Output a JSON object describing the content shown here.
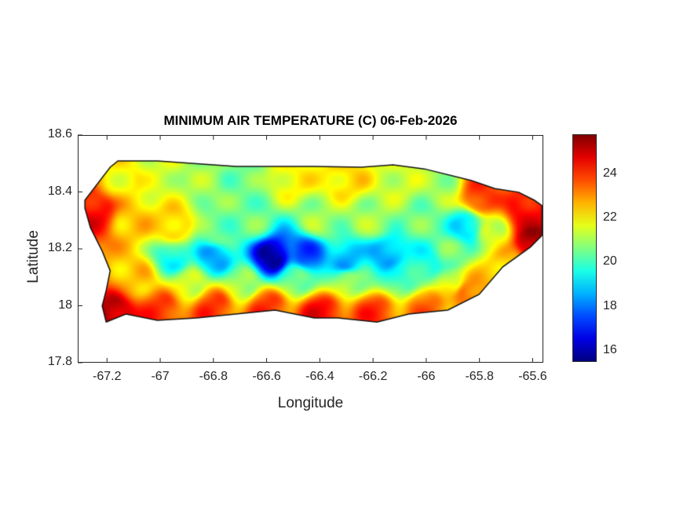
{
  "chart_data": {
    "type": "heatmap",
    "title": "MINIMUM AIR TEMPERATURE (C) 06-Feb-2026",
    "xlabel": "Longitude",
    "ylabel": "Latitude",
    "xlim": [
      -67.31,
      -65.56
    ],
    "ylim": [
      17.8,
      18.6
    ],
    "xticks": [
      "-67.2",
      "-67",
      "-66.8",
      "-66.6",
      "-66.4",
      "-66.2",
      "-66",
      "-65.8",
      "-65.6"
    ],
    "yticks": [
      "18.6",
      "18.4",
      "18.2",
      "18",
      "17.8"
    ],
    "colorbar": {
      "colormap": "jet",
      "range": [
        15.5,
        25.8
      ],
      "ticks": [
        "24",
        "22",
        "20",
        "18",
        "16"
      ]
    },
    "outline": [
      [
        -67.283,
        18.371
      ],
      [
        -67.188,
        18.487
      ],
      [
        -67.159,
        18.509
      ],
      [
        -67.011,
        18.509
      ],
      [
        -66.716,
        18.49
      ],
      [
        -66.421,
        18.49
      ],
      [
        -66.244,
        18.487
      ],
      [
        -66.125,
        18.495
      ],
      [
        -66.007,
        18.481
      ],
      [
        -65.83,
        18.44
      ],
      [
        -65.742,
        18.412
      ],
      [
        -65.653,
        18.399
      ],
      [
        -65.594,
        18.371
      ],
      [
        -65.565,
        18.352
      ],
      [
        -65.565,
        18.247
      ],
      [
        -65.609,
        18.206
      ],
      [
        -65.712,
        18.137
      ],
      [
        -65.801,
        18.04
      ],
      [
        -65.919,
        17.985
      ],
      [
        -66.066,
        17.971
      ],
      [
        -66.185,
        17.943
      ],
      [
        -66.332,
        17.957
      ],
      [
        -66.421,
        17.957
      ],
      [
        -66.568,
        17.985
      ],
      [
        -66.716,
        17.971
      ],
      [
        -66.863,
        17.957
      ],
      [
        -67.011,
        17.949
      ],
      [
        -67.129,
        17.971
      ],
      [
        -67.203,
        17.943
      ],
      [
        -67.218,
        17.999
      ],
      [
        -67.203,
        18.054
      ],
      [
        -67.188,
        18.123
      ],
      [
        -67.218,
        18.192
      ],
      [
        -67.262,
        18.274
      ],
      [
        -67.283,
        18.343
      ]
    ],
    "field_samples": [
      [
        -67.25,
        18.33,
        24.5
      ],
      [
        -67.15,
        18.45,
        22.0
      ],
      [
        -67.0,
        18.45,
        21.5
      ],
      [
        -66.85,
        18.45,
        21.0
      ],
      [
        -66.7,
        18.45,
        20.5
      ],
      [
        -66.5,
        18.45,
        22.0
      ],
      [
        -66.3,
        18.45,
        22.3
      ],
      [
        -66.1,
        18.45,
        21.5
      ],
      [
        -65.95,
        18.42,
        21.0
      ],
      [
        -65.8,
        18.38,
        24.0
      ],
      [
        -65.62,
        18.32,
        24.5
      ],
      [
        -65.6,
        18.23,
        25.5
      ],
      [
        -65.75,
        18.25,
        21.5
      ],
      [
        -65.85,
        18.28,
        19.0
      ],
      [
        -67.1,
        18.3,
        22.5
      ],
      [
        -66.95,
        18.28,
        22.5
      ],
      [
        -66.8,
        18.26,
        20.5
      ],
      [
        -66.65,
        18.3,
        20.5
      ],
      [
        -66.4,
        18.3,
        21.0
      ],
      [
        -66.2,
        18.3,
        21.0
      ],
      [
        -66.0,
        18.3,
        20.5
      ],
      [
        -66.95,
        18.17,
        19.5
      ],
      [
        -66.8,
        18.17,
        18.5
      ],
      [
        -66.58,
        18.17,
        15.8
      ],
      [
        -66.45,
        18.18,
        17.5
      ],
      [
        -66.3,
        18.15,
        18.5
      ],
      [
        -66.15,
        18.18,
        18.5
      ],
      [
        -66.0,
        18.15,
        19.5
      ],
      [
        -65.9,
        18.18,
        20.5
      ],
      [
        -67.1,
        18.1,
        22.5
      ],
      [
        -66.9,
        18.08,
        21.5
      ],
      [
        -66.7,
        18.08,
        21.0
      ],
      [
        -66.5,
        18.1,
        20.5
      ],
      [
        -66.3,
        18.1,
        21.0
      ],
      [
        -66.1,
        18.1,
        20.0
      ],
      [
        -65.9,
        18.08,
        21.5
      ],
      [
        -67.18,
        17.97,
        25.3
      ],
      [
        -67.0,
        17.99,
        24.0
      ],
      [
        -66.8,
        18.0,
        24.0
      ],
      [
        -66.6,
        18.0,
        24.0
      ],
      [
        -66.4,
        17.98,
        24.5
      ],
      [
        -66.2,
        17.98,
        24.0
      ],
      [
        -66.0,
        18.0,
        23.5
      ],
      [
        -65.85,
        18.05,
        23.5
      ],
      [
        -65.7,
        18.15,
        22.5
      ]
    ]
  }
}
